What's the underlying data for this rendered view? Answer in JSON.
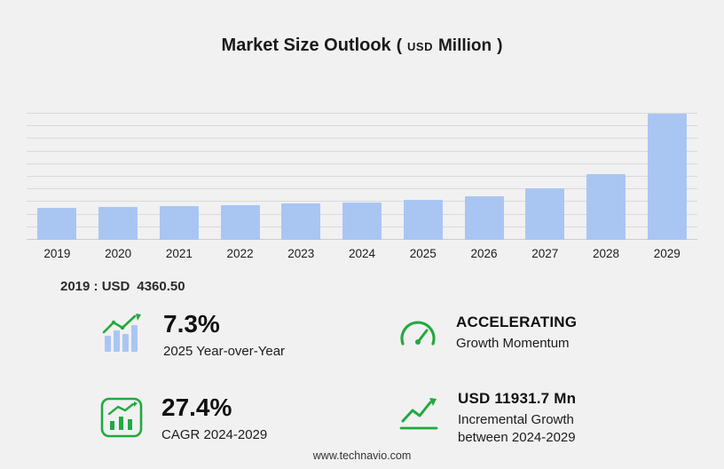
{
  "title": {
    "main": "Market Size Outlook",
    "paren_open": "(",
    "currency": "USD",
    "unit": "Million",
    "paren_close": ")"
  },
  "chart_data": {
    "type": "bar",
    "title": "Market Size Outlook (USD Million)",
    "categories": [
      "2019",
      "2020",
      "2021",
      "2022",
      "2023",
      "2024",
      "2025",
      "2026",
      "2027",
      "2028",
      "2029"
    ],
    "values": [
      4360.5,
      4450,
      4520,
      4700,
      4900,
      5060,
      5430,
      5900,
      6900,
      8900,
      16990
    ],
    "xlabel": "",
    "ylabel": "USD Million",
    "ylim": [
      0,
      17000
    ],
    "grid": true,
    "legend": "none",
    "bar_color": "#a9c6f3"
  },
  "base_year": {
    "label": "2019 : USD",
    "value": "4360.50"
  },
  "stats": [
    {
      "icon": "yoy-bars-arrow-icon",
      "value": "7.3%",
      "label": "2025 Year-over-Year"
    },
    {
      "icon": "speedometer-icon",
      "value": "ACCELERATING",
      "label": "Growth Momentum"
    },
    {
      "icon": "cagr-chart-icon",
      "value": "27.4%",
      "label": "CAGR 2024-2029"
    },
    {
      "icon": "incremental-growth-icon",
      "value": "USD 11931.7 Mn",
      "label": "Incremental Growth",
      "label2": "between 2024-2029"
    }
  ],
  "footer": {
    "url": "www.technavio.com"
  },
  "colors": {
    "background": "#f1f1f2",
    "bar": "#a9c6f3",
    "gridline": "#d9d9da",
    "green": "#22a93f",
    "text": "#1a1a1a"
  }
}
